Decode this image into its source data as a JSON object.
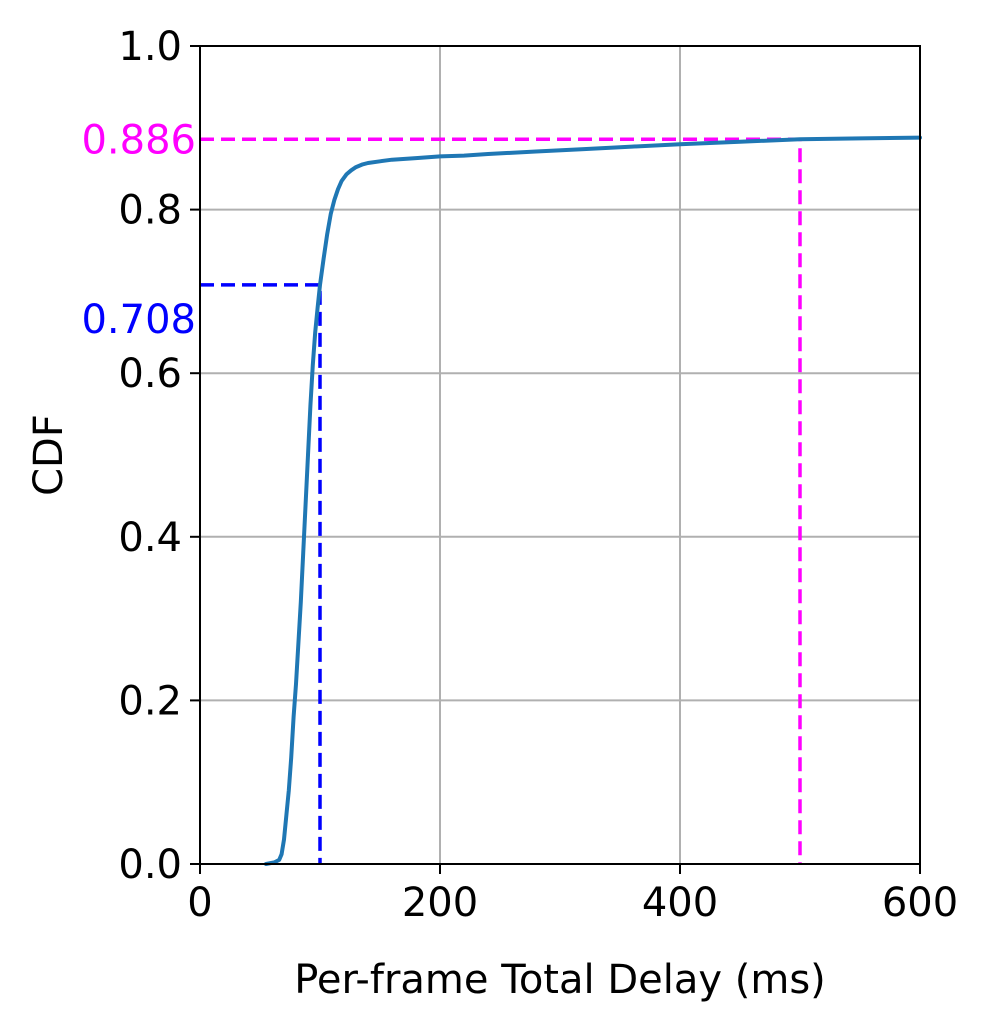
{
  "chart_data": {
    "type": "line",
    "title": "",
    "xlabel": "Per-frame Total Delay (ms)",
    "ylabel": "CDF",
    "xlim": [
      0,
      600
    ],
    "ylim": [
      0,
      1.0
    ],
    "xticks": [
      0,
      200,
      400,
      600
    ],
    "xtick_labels": [
      "0",
      "200",
      "400",
      "600"
    ],
    "yticks": [
      0,
      0.2,
      0.4,
      0.6,
      0.8,
      1.0
    ],
    "ytick_labels": [
      "0.0",
      "0.2",
      "0.4",
      "0.6",
      "0.8",
      "1.0"
    ],
    "grid": true,
    "series_color": "#1f77b4",
    "series": [
      {
        "x": [
          55,
          62,
          66,
          68,
          70,
          72,
          74,
          76,
          78,
          80,
          82,
          84,
          86,
          88,
          90,
          92,
          94,
          96,
          98,
          100,
          103,
          106,
          109,
          112,
          115,
          118,
          122,
          126,
          130,
          135,
          140,
          150,
          160,
          180,
          200,
          220,
          240,
          280,
          320,
          360,
          400,
          450,
          500,
          550,
          600
        ],
        "y": [
          0.0,
          0.002,
          0.005,
          0.012,
          0.03,
          0.06,
          0.09,
          0.13,
          0.18,
          0.22,
          0.27,
          0.32,
          0.38,
          0.44,
          0.5,
          0.56,
          0.61,
          0.65,
          0.68,
          0.708,
          0.74,
          0.77,
          0.795,
          0.812,
          0.825,
          0.835,
          0.843,
          0.848,
          0.852,
          0.855,
          0.857,
          0.859,
          0.861,
          0.863,
          0.865,
          0.866,
          0.868,
          0.871,
          0.874,
          0.877,
          0.88,
          0.883,
          0.886,
          0.887,
          0.888
        ]
      }
    ],
    "annotations": [
      {
        "x": 100,
        "y": 0.708,
        "label": "0.708",
        "color": "#0000ff"
      },
      {
        "x": 500,
        "y": 0.886,
        "label": "0.886",
        "color": "#ff00ff"
      }
    ]
  }
}
